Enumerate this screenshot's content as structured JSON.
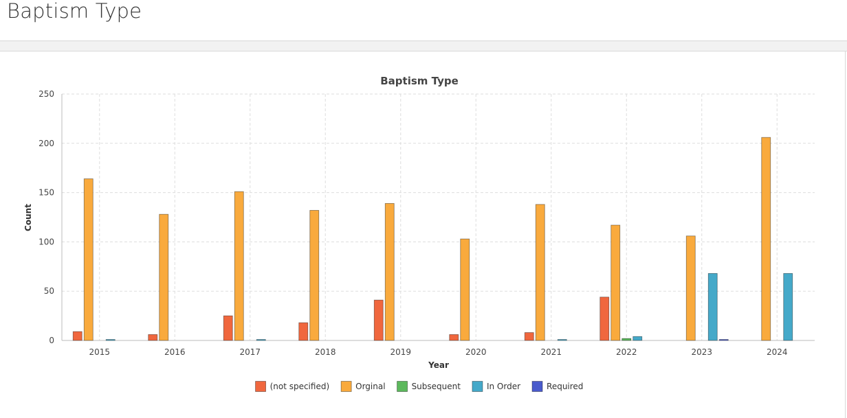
{
  "page": {
    "title": "Baptism Type"
  },
  "chart_data": {
    "type": "bar",
    "title": "Baptism Type",
    "xlabel": "Year",
    "ylabel": "Count",
    "ylim": [
      0,
      250
    ],
    "yticks": [
      0,
      50,
      100,
      150,
      200,
      250
    ],
    "grid": true,
    "legend_position": "bottom",
    "categories": [
      "2015",
      "2016",
      "2017",
      "2018",
      "2019",
      "2020",
      "2021",
      "2022",
      "2023",
      "2024"
    ],
    "series": [
      {
        "name": "(not specified)",
        "color": "#f0673e",
        "values": [
          9,
          6,
          25,
          18,
          41,
          6,
          8,
          44,
          0,
          0
        ]
      },
      {
        "name": "Orginal",
        "color": "#f9aa3d",
        "values": [
          164,
          128,
          151,
          132,
          139,
          103,
          138,
          117,
          106,
          206
        ]
      },
      {
        "name": "Subsequent",
        "color": "#5cb85c",
        "values": [
          0,
          0,
          0,
          0,
          0,
          0,
          0,
          2,
          0,
          0
        ]
      },
      {
        "name": "In Order",
        "color": "#45a9c9",
        "values": [
          1,
          0,
          1,
          0,
          0,
          0,
          1,
          4,
          68,
          68
        ]
      },
      {
        "name": "Required",
        "color": "#4a5bcc",
        "values": [
          0,
          0,
          0,
          0,
          0,
          0,
          0,
          0,
          1,
          0
        ]
      }
    ]
  }
}
